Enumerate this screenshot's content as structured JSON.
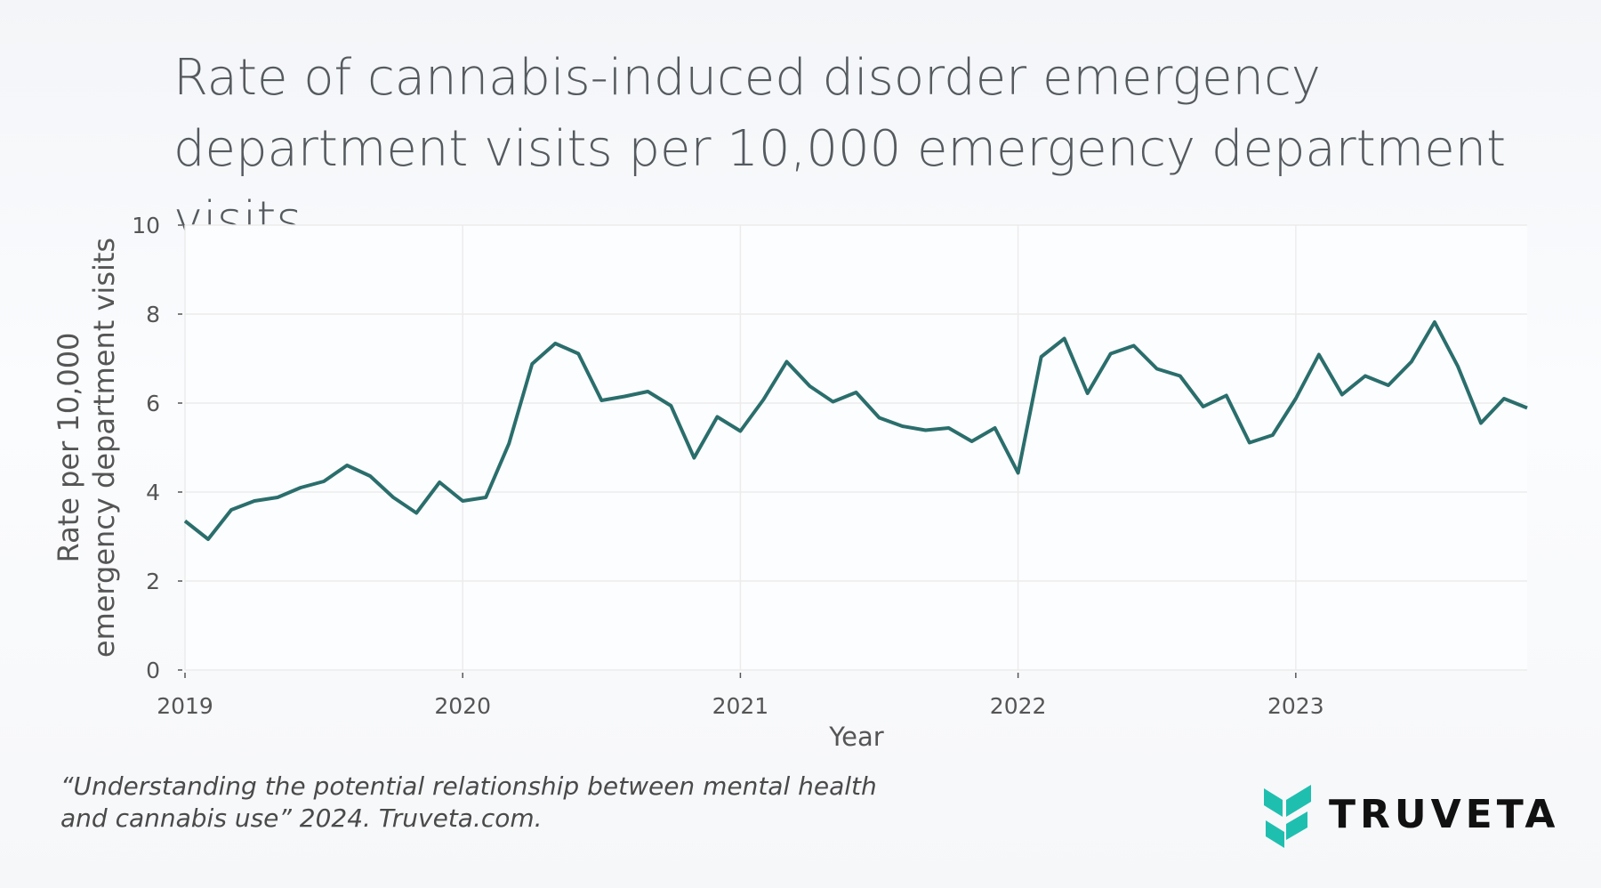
{
  "title": "Rate of cannabis-induced disorder emergency department visits per 10,000 emergency department visits",
  "citation": {
    "line1": "“Understanding the potential relationship between mental health",
    "line2": "and cannabis use” 2024. Truveta.com."
  },
  "logo": {
    "text": "TRUVETA",
    "color": "#1fbfb0"
  },
  "chart_data": {
    "type": "line",
    "title": "Rate of cannabis-induced disorder emergency department visits per 10,000 emergency department visits",
    "xlabel": "Year",
    "ylabel_lines": [
      "Rate per 10,000",
      "emergency department visits"
    ],
    "ylim": [
      0,
      10
    ],
    "yticks": [
      0,
      2,
      4,
      6,
      8,
      10
    ],
    "xticks": [
      "2019",
      "2020",
      "2021",
      "2022",
      "2023"
    ],
    "xlim": [
      "2019-01",
      "2023-11"
    ],
    "grid": true,
    "line_color": "#2a6e6c",
    "x": [
      "2019-01",
      "2019-02",
      "2019-03",
      "2019-04",
      "2019-05",
      "2019-06",
      "2019-07",
      "2019-08",
      "2019-09",
      "2019-10",
      "2019-11",
      "2019-12",
      "2020-01",
      "2020-02",
      "2020-03",
      "2020-04",
      "2020-05",
      "2020-06",
      "2020-07",
      "2020-08",
      "2020-09",
      "2020-10",
      "2020-11",
      "2020-12",
      "2021-01",
      "2021-02",
      "2021-03",
      "2021-04",
      "2021-05",
      "2021-06",
      "2021-07",
      "2021-08",
      "2021-09",
      "2021-10",
      "2021-11",
      "2021-12",
      "2022-01",
      "2022-02",
      "2022-03",
      "2022-04",
      "2022-05",
      "2022-06",
      "2022-07",
      "2022-08",
      "2022-09",
      "2022-10",
      "2022-11",
      "2022-12",
      "2023-01",
      "2023-02",
      "2023-03",
      "2023-04",
      "2023-05",
      "2023-06",
      "2023-07",
      "2023-08",
      "2023-09",
      "2023-10",
      "2023-11"
    ],
    "values": [
      3.35,
      2.94,
      3.6,
      3.8,
      3.88,
      4.1,
      4.24,
      4.6,
      4.36,
      3.88,
      3.53,
      4.22,
      3.8,
      3.88,
      5.09,
      6.88,
      7.34,
      7.11,
      6.06,
      6.15,
      6.26,
      5.94,
      4.77,
      5.69,
      5.37,
      6.08,
      6.93,
      6.38,
      6.03,
      6.24,
      5.67,
      5.48,
      5.39,
      5.44,
      5.14,
      5.44,
      4.43,
      7.04,
      7.45,
      6.22,
      7.11,
      7.29,
      6.77,
      6.61,
      5.92,
      6.17,
      5.11,
      5.28,
      6.1,
      7.09,
      6.19,
      6.61,
      6.4,
      6.93,
      7.82,
      6.83,
      5.55,
      6.1,
      5.89
    ]
  }
}
